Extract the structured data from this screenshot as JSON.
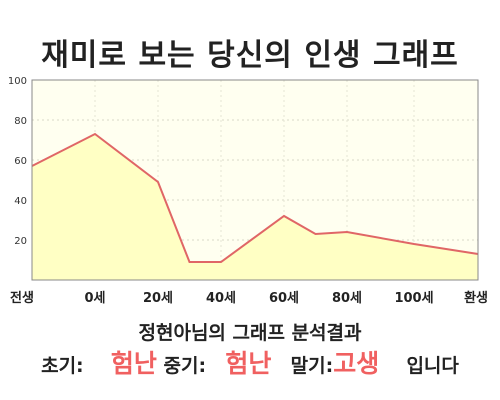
{
  "title": "재미로 보는 당신의 인생 그래프",
  "subtitle": "정현아님의 그래프 분석결과",
  "result": {
    "early_label": "초기:",
    "early_value": "험난",
    "mid_label": "중기:",
    "mid_value": "험난",
    "late_label": "말기:",
    "late_value": "고생",
    "ending": "입니다"
  },
  "colors": {
    "line": "#e06666",
    "fill": "#ffffc4",
    "plot_bg": "#fffff0",
    "highlight": "#f06060"
  },
  "chart_data": {
    "type": "area",
    "title": "재미로 보는 당신의 인생 그래프",
    "xlabel": "",
    "ylabel": "",
    "x_tick_labels": [
      "전생",
      "0세",
      "20세",
      "40세",
      "60세",
      "80세",
      "100세",
      "환생"
    ],
    "y_ticks": [
      20,
      40,
      60,
      80,
      100
    ],
    "ylim": [
      0,
      100
    ],
    "grid": true,
    "series": [
      {
        "points": [
          {
            "x": "전생",
            "y": 57
          },
          {
            "x": "0세",
            "y": 73
          },
          {
            "x": "20세",
            "y": 49
          },
          {
            "x": "30세",
            "y": 9
          },
          {
            "x": "40세",
            "y": 9
          },
          {
            "x": "60세",
            "y": 32
          },
          {
            "x": "70세",
            "y": 23
          },
          {
            "x": "80세",
            "y": 24
          },
          {
            "x": "100세",
            "y": 18
          },
          {
            "x": "환생",
            "y": 13
          }
        ]
      }
    ]
  }
}
